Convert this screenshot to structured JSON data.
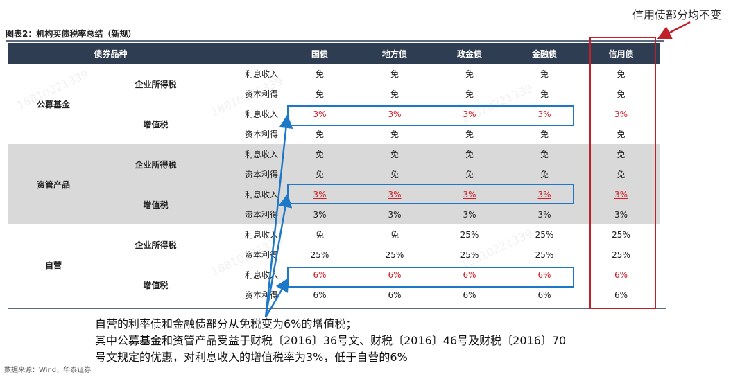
{
  "title": "图表2：机构买债税率总结（新规）",
  "callout_top": "信用债部分均不变",
  "header": [
    "债券品种",
    "",
    "国债",
    "地方债",
    "政金债",
    "金融债",
    "信用债"
  ],
  "groups": [
    {
      "name": "公募基金",
      "band": false,
      "taxes": [
        {
          "tax": "企业所得税",
          "rows": [
            {
              "item": "利息收入",
              "values": [
                "免",
                "免",
                "免",
                "免",
                "免"
              ],
              "red": false
            },
            {
              "item": "资本利得",
              "values": [
                "免",
                "免",
                "免",
                "免",
                "免"
              ],
              "red": false
            }
          ]
        },
        {
          "tax": "增值税",
          "rows": [
            {
              "item": "利息收入",
              "values": [
                "3%",
                "3%",
                "3%",
                "3%",
                "3%"
              ],
              "red": true
            },
            {
              "item": "资本利得",
              "values": [
                "免",
                "免",
                "免",
                "免",
                "免"
              ],
              "red": false
            }
          ]
        }
      ]
    },
    {
      "name": "资管产品",
      "band": true,
      "taxes": [
        {
          "tax": "企业所得税",
          "rows": [
            {
              "item": "利息收入",
              "values": [
                "免",
                "免",
                "免",
                "免",
                "免"
              ],
              "red": false
            },
            {
              "item": "资本利得",
              "values": [
                "免",
                "免",
                "免",
                "免",
                "免"
              ],
              "red": false
            }
          ]
        },
        {
          "tax": "增值税",
          "rows": [
            {
              "item": "利息收入",
              "values": [
                "3%",
                "3%",
                "3%",
                "3%",
                "3%"
              ],
              "red": true
            },
            {
              "item": "资本利得",
              "values": [
                "3%",
                "3%",
                "3%",
                "3%",
                "3%"
              ],
              "red": false
            }
          ]
        }
      ]
    },
    {
      "name": "自营",
      "band": false,
      "taxes": [
        {
          "tax": "企业所得税",
          "rows": [
            {
              "item": "利息收入",
              "values": [
                "免",
                "免",
                "25%",
                "25%",
                "25%"
              ],
              "red": false
            },
            {
              "item": "资本利得",
              "values": [
                "25%",
                "25%",
                "25%",
                "25%",
                "25%"
              ],
              "red": false
            }
          ]
        },
        {
          "tax": "增值税",
          "rows": [
            {
              "item": "利息收入",
              "values": [
                "6%",
                "6%",
                "6%",
                "6%",
                "6%"
              ],
              "red": true
            },
            {
              "item": "资本利得",
              "values": [
                "6%",
                "6%",
                "6%",
                "6%",
                "6%"
              ],
              "red": false
            }
          ]
        }
      ]
    }
  ],
  "note_lines": [
    "自营的利率债和金融债部分从免税变为6%的增值税；",
    "其中公募基金和资管产品受益于财税〔2016〕36号文、财税〔2016〕46号及财税〔2016〕70",
    "号文规定的优惠，对利息收入的增值税率为3%，低于自营的6%"
  ],
  "source": "数据来源：Wind，华泰证券",
  "watermark": "18810221339",
  "colors": {
    "header_bg": "#2f3d52",
    "band_bg": "#d9d9d9",
    "red": "#d0202a",
    "blue": "#1e78c8",
    "box_red": "#c0202a"
  }
}
